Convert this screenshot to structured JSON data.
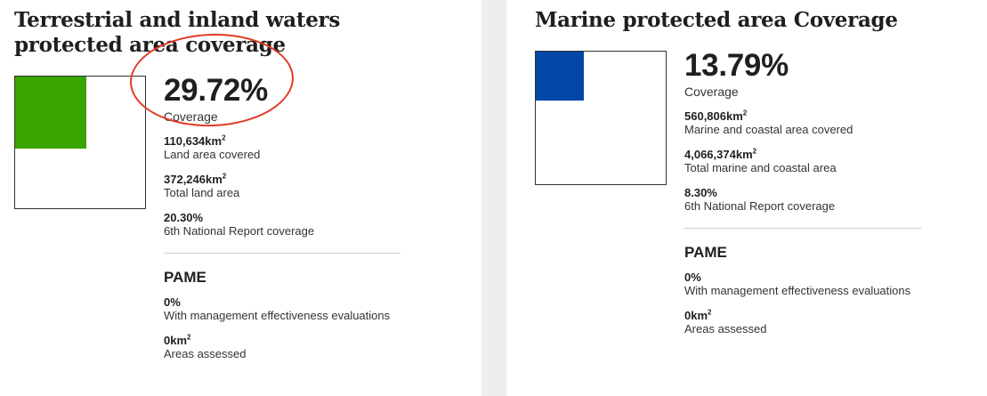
{
  "terrestrial": {
    "title": "Terrestrial and inland waters protected area coverage",
    "coverage_value": "29.72%",
    "coverage_fraction": 0.2972,
    "coverage_label": "Coverage",
    "land_covered_num": "110,634km",
    "land_covered_sup": "2",
    "land_covered_label": "Land area covered",
    "total_land_num": "372,246km",
    "total_land_sup": "2",
    "total_land_label": "Total land area",
    "national_report_value": "20.30%",
    "national_report_label": "6th National Report coverage",
    "pame_heading": "PAME",
    "pame_value": "0%",
    "pame_label": "With management effectiveness evaluations",
    "areas_num": "0km",
    "areas_sup": "2",
    "areas_label": "Areas assessed",
    "accent_color": "#3aa500"
  },
  "marine": {
    "title": "Marine protected area Coverage",
    "coverage_value": "13.79%",
    "coverage_fraction": 0.1379,
    "coverage_label": "Coverage",
    "area_covered_num": "560,806km",
    "area_covered_sup": "2",
    "area_covered_label": "Marine and coastal area covered",
    "total_area_num": "4,066,374km",
    "total_area_sup": "2",
    "total_area_label": "Total marine and coastal area",
    "national_report_value": "8.30%",
    "national_report_label": "6th National Report coverage",
    "pame_heading": "PAME",
    "pame_value": "0%",
    "pame_label": "With management effectiveness evaluations",
    "areas_num": "0km",
    "areas_sup": "2",
    "areas_label": "Areas assessed",
    "accent_color": "#0047a8"
  },
  "annotation_color": "#e03b26"
}
